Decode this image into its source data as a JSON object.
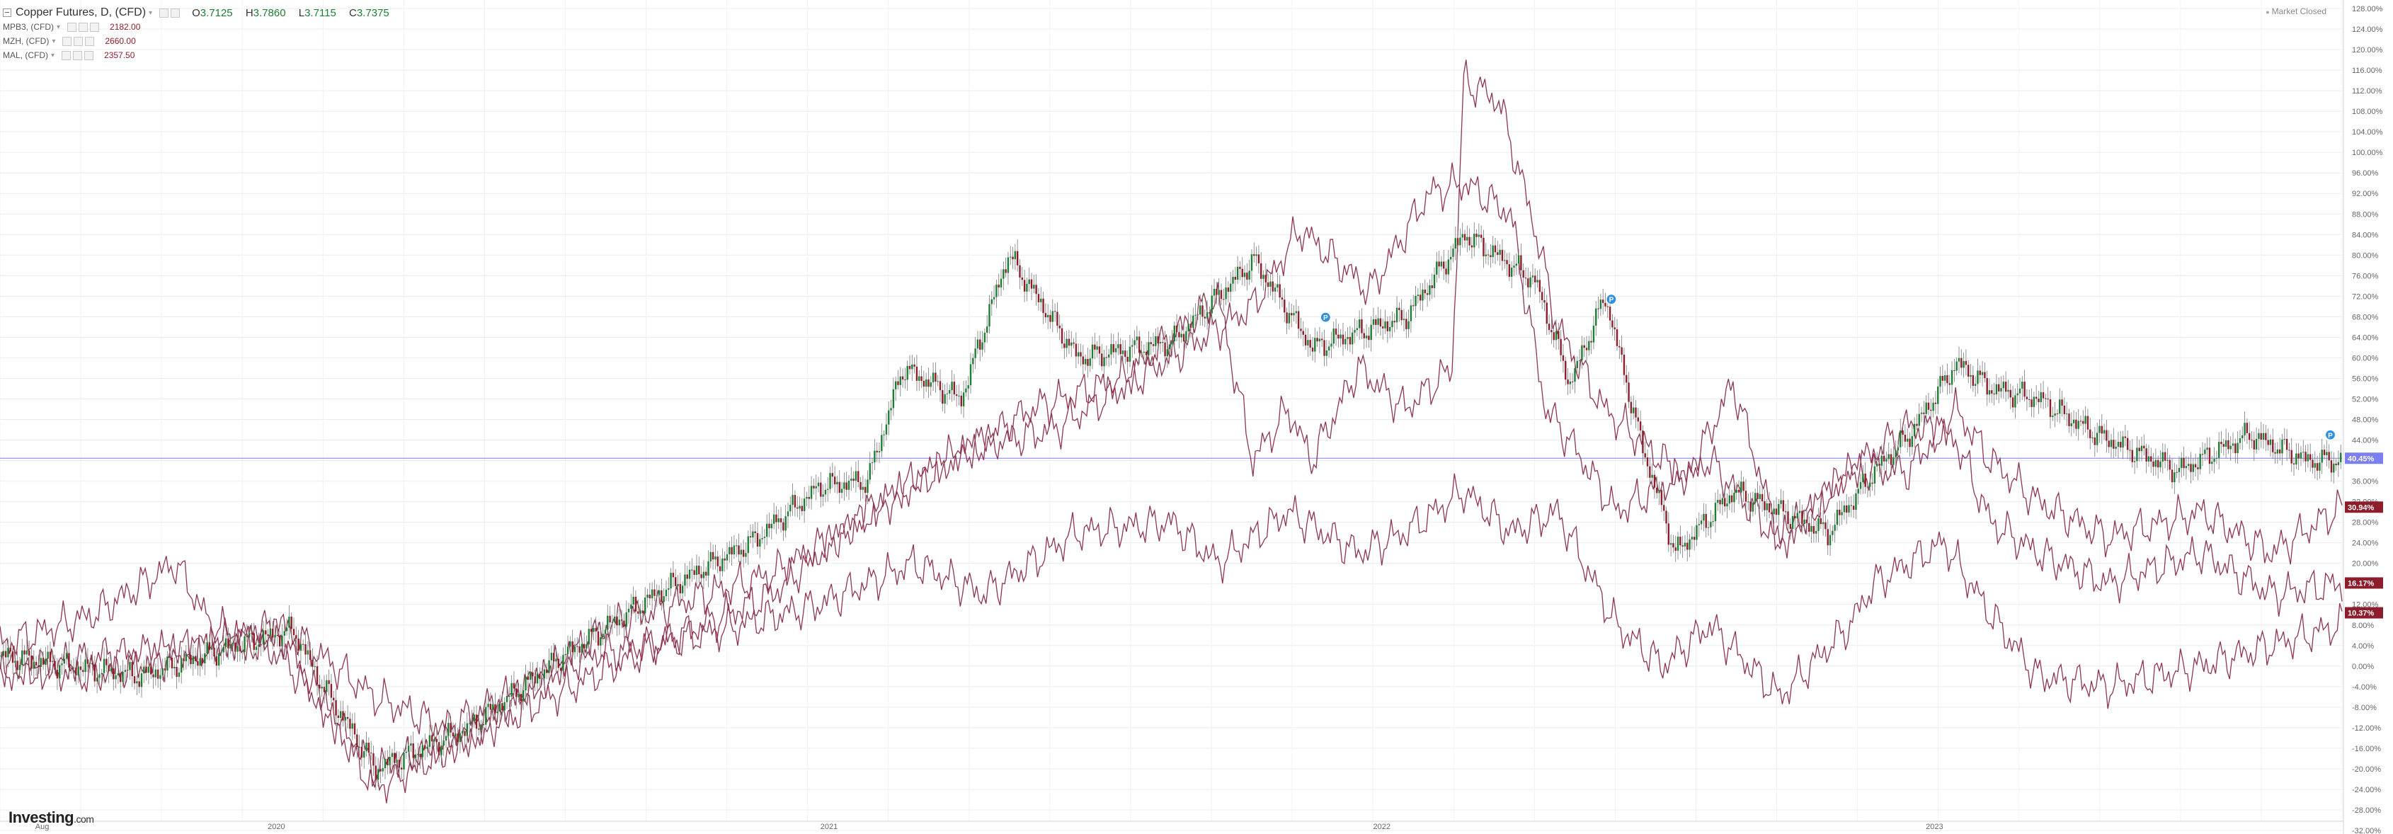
{
  "header": {
    "symbol": "Copper Futures, D, (CFD)",
    "ohlc": {
      "o_label": "O",
      "o": "3.7125",
      "h_label": "H",
      "h": "3.7860",
      "l_label": "L",
      "l": "3.7115",
      "c_label": "C",
      "c": "3.7375"
    },
    "comparisons": [
      {
        "name": "MPB3, (CFD)",
        "value": "2182.00"
      },
      {
        "name": "MZH, (CFD)",
        "value": "2660.00"
      },
      {
        "name": "MAL, (CFD)",
        "value": "2357.50"
      }
    ]
  },
  "market_status": "Market Closed",
  "brand": {
    "name": "Investing",
    "suffix": ".com"
  },
  "colors": {
    "up": "#1e7e34",
    "down": "#8e1d2c",
    "compare": "#8e3550",
    "current_line": "#7b7ff0",
    "grid": "#ececec",
    "axis_text": "#666666"
  },
  "chart_data": {
    "type": "candlestick",
    "scale": "percent-change",
    "y_range": [
      -32,
      128
    ],
    "y_ticks": [
      "128.00%",
      "124.00%",
      "120.00%",
      "116.00%",
      "112.00%",
      "108.00%",
      "104.00%",
      "100.00%",
      "96.00%",
      "92.00%",
      "88.00%",
      "84.00%",
      "80.00%",
      "76.00%",
      "72.00%",
      "68.00%",
      "64.00%",
      "60.00%",
      "56.00%",
      "52.00%",
      "48.00%",
      "44.00%",
      "40.00%",
      "36.00%",
      "32.00%",
      "28.00%",
      "24.00%",
      "20.00%",
      "16.00%",
      "12.00%",
      "8.00%",
      "4.00%",
      "0.00%",
      "-4.00%",
      "-8.00%",
      "-12.00%",
      "-16.00%",
      "-20.00%",
      "-24.00%",
      "-28.00%",
      "-32.00%"
    ],
    "x_labels": [
      "Aug",
      "2020",
      "2021",
      "2022",
      "2023"
    ],
    "current_label": "40.45%",
    "series": [
      {
        "name": "Copper Futures, D, (CFD)",
        "last_pct": 40.45,
        "keypoints": [
          [
            0,
            2
          ],
          [
            0.06,
            -2
          ],
          [
            0.1,
            4
          ],
          [
            0.125,
            7
          ],
          [
            0.135,
            -2
          ],
          [
            0.16,
            -20
          ],
          [
            0.2,
            -12
          ],
          [
            0.24,
            2
          ],
          [
            0.28,
            14
          ],
          [
            0.32,
            24
          ],
          [
            0.35,
            35
          ],
          [
            0.37,
            36
          ],
          [
            0.385,
            58
          ],
          [
            0.41,
            52
          ],
          [
            0.43,
            80
          ],
          [
            0.46,
            60
          ],
          [
            0.5,
            63
          ],
          [
            0.535,
            79
          ],
          [
            0.56,
            62
          ],
          [
            0.6,
            68
          ],
          [
            0.625,
            84
          ],
          [
            0.655,
            75
          ],
          [
            0.67,
            55
          ],
          [
            0.685,
            72
          ],
          [
            0.7,
            44
          ],
          [
            0.715,
            22
          ],
          [
            0.74,
            34
          ],
          [
            0.76,
            30
          ],
          [
            0.78,
            26
          ],
          [
            0.8,
            38
          ],
          [
            0.815,
            45
          ],
          [
            0.835,
            59
          ],
          [
            0.85,
            54
          ],
          [
            0.87,
            52
          ],
          [
            0.895,
            45
          ],
          [
            0.93,
            38
          ],
          [
            0.96,
            45
          ],
          [
            0.985,
            40
          ],
          [
            1,
            40
          ]
        ]
      },
      {
        "name": "MPB3, (CFD)",
        "last_pct": 30.94,
        "keypoints": [
          [
            0,
            4
          ],
          [
            0.04,
            10
          ],
          [
            0.075,
            20
          ],
          [
            0.09,
            8
          ],
          [
            0.12,
            2
          ],
          [
            0.16,
            -20
          ],
          [
            0.2,
            -14
          ],
          [
            0.28,
            4
          ],
          [
            0.33,
            14
          ],
          [
            0.37,
            30
          ],
          [
            0.41,
            42
          ],
          [
            0.45,
            46
          ],
          [
            0.5,
            60
          ],
          [
            0.535,
            70
          ],
          [
            0.555,
            85
          ],
          [
            0.585,
            73
          ],
          [
            0.61,
            92
          ],
          [
            0.625,
            94
          ],
          [
            0.645,
            88
          ],
          [
            0.66,
            50
          ],
          [
            0.67,
            44
          ],
          [
            0.69,
            30
          ],
          [
            0.73,
            40
          ],
          [
            0.76,
            24
          ],
          [
            0.79,
            38
          ],
          [
            0.815,
            38
          ],
          [
            0.835,
            50
          ],
          [
            0.85,
            40
          ],
          [
            0.87,
            32
          ],
          [
            0.9,
            25
          ],
          [
            0.94,
            30
          ],
          [
            0.97,
            22
          ],
          [
            1,
            31
          ]
        ]
      },
      {
        "name": "MZH, (CFD)",
        "last_pct": 16.17,
        "keypoints": [
          [
            0,
            0
          ],
          [
            0.04,
            -2
          ],
          [
            0.09,
            4
          ],
          [
            0.12,
            6
          ],
          [
            0.16,
            -24
          ],
          [
            0.2,
            -14
          ],
          [
            0.26,
            8
          ],
          [
            0.33,
            18
          ],
          [
            0.36,
            26
          ],
          [
            0.4,
            38
          ],
          [
            0.44,
            50
          ],
          [
            0.48,
            56
          ],
          [
            0.52,
            72
          ],
          [
            0.535,
            40
          ],
          [
            0.55,
            50
          ],
          [
            0.56,
            40
          ],
          [
            0.58,
            58
          ],
          [
            0.6,
            50
          ],
          [
            0.62,
            58
          ],
          [
            0.625,
            114
          ],
          [
            0.64,
            110
          ],
          [
            0.655,
            86
          ],
          [
            0.665,
            66
          ],
          [
            0.685,
            50
          ],
          [
            0.7,
            44
          ],
          [
            0.72,
            36
          ],
          [
            0.74,
            55
          ],
          [
            0.76,
            24
          ],
          [
            0.79,
            38
          ],
          [
            0.815,
            47
          ],
          [
            0.835,
            44
          ],
          [
            0.85,
            28
          ],
          [
            0.87,
            22
          ],
          [
            0.9,
            16
          ],
          [
            0.94,
            22
          ],
          [
            0.97,
            14
          ],
          [
            1,
            16
          ]
        ]
      },
      {
        "name": "MAL, (CFD)",
        "last_pct": 10.37,
        "keypoints": [
          [
            0,
            -2
          ],
          [
            0.04,
            2
          ],
          [
            0.09,
            4
          ],
          [
            0.12,
            8
          ],
          [
            0.16,
            -6
          ],
          [
            0.19,
            -12
          ],
          [
            0.25,
            2
          ],
          [
            0.3,
            6
          ],
          [
            0.35,
            12
          ],
          [
            0.39,
            20
          ],
          [
            0.42,
            14
          ],
          [
            0.46,
            26
          ],
          [
            0.5,
            28
          ],
          [
            0.52,
            20
          ],
          [
            0.55,
            30
          ],
          [
            0.58,
            22
          ],
          [
            0.6,
            26
          ],
          [
            0.625,
            34
          ],
          [
            0.645,
            26
          ],
          [
            0.665,
            30
          ],
          [
            0.69,
            8
          ],
          [
            0.71,
            0
          ],
          [
            0.73,
            8
          ],
          [
            0.76,
            -6
          ],
          [
            0.79,
            8
          ],
          [
            0.8,
            16
          ],
          [
            0.83,
            24
          ],
          [
            0.85,
            10
          ],
          [
            0.87,
            -2
          ],
          [
            0.9,
            -4
          ],
          [
            0.94,
            0
          ],
          [
            0.97,
            4
          ],
          [
            1,
            8
          ]
        ]
      }
    ],
    "markers": [
      {
        "series": 0,
        "at": 0.566,
        "label": "P"
      },
      {
        "series": 0,
        "at": 0.688,
        "label": "P"
      },
      {
        "series": 0,
        "at": 0.995,
        "label": "P"
      }
    ]
  }
}
